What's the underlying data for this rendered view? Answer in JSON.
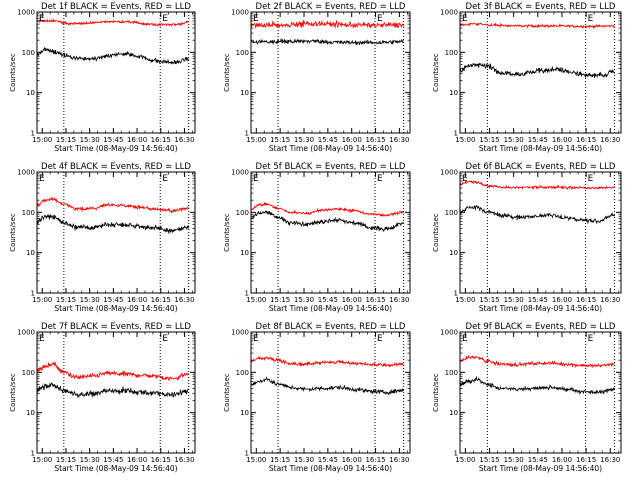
{
  "chart_data": [
    {
      "type": "line",
      "title": "Det 1f BLACK = Events, RED = LLD",
      "xlabel": "Start Time (08-May-09 14:56:40)",
      "ylabel": "Counts/sec",
      "ylog": true,
      "ylim": [
        1,
        1000
      ],
      "yticks": [
        "1",
        "10",
        "100",
        "1000"
      ],
      "xticks": [
        "15:00",
        "15:15",
        "15:30",
        "15:45",
        "16:00",
        "16:15",
        "16:30"
      ],
      "xlim_min": [
        0,
        100
      ],
      "vlines_min": [
        17,
        78,
        96
      ],
      "marker": "E",
      "marker_min": [
        0,
        78
      ],
      "series": [
        {
          "color": "#ff0000",
          "noise": 0.03,
          "x_min": [
            0,
            10,
            20,
            30,
            40,
            50,
            60,
            70,
            80,
            90,
            96
          ],
          "y": [
            600,
            610,
            520,
            520,
            560,
            580,
            560,
            500,
            490,
            500,
            560
          ]
        },
        {
          "color": "#000000",
          "noise": 0.05,
          "x_min": [
            0,
            5,
            10,
            17,
            25,
            35,
            45,
            50,
            55,
            65,
            72,
            80,
            88,
            96
          ],
          "y": [
            90,
            115,
            105,
            85,
            70,
            70,
            80,
            88,
            92,
            80,
            65,
            58,
            56,
            70
          ]
        }
      ]
    },
    {
      "type": "line",
      "title": "Det 2f BLACK = Events, RED = LLD",
      "xlabel": "Start Time (08-May-09 14:56:40)",
      "ylabel": "Counts/sec",
      "ylog": true,
      "ylim": [
        1,
        1000
      ],
      "yticks": [
        "1",
        "10",
        "100",
        "1000"
      ],
      "xticks": [
        "15:00",
        "15:15",
        "15:30",
        "15:45",
        "16:00",
        "16:15",
        "16:30"
      ],
      "xlim_min": [
        0,
        100
      ],
      "vlines_min": [
        17,
        78,
        96
      ],
      "marker": "E",
      "marker_min": [
        0,
        78
      ],
      "series": [
        {
          "color": "#ff0000",
          "noise": 0.07,
          "x_min": [
            0,
            20,
            40,
            50,
            60,
            80,
            96
          ],
          "y": [
            470,
            480,
            520,
            500,
            480,
            470,
            480
          ]
        },
        {
          "color": "#000000",
          "noise": 0.05,
          "x_min": [
            0,
            20,
            40,
            50,
            60,
            80,
            96
          ],
          "y": [
            180,
            185,
            190,
            180,
            175,
            175,
            185
          ]
        }
      ]
    },
    {
      "type": "line",
      "title": "Det 3f BLACK = Events, RED = LLD",
      "xlabel": "Start Time (08-May-09 14:56:40)",
      "ylabel": "Counts/sec",
      "ylog": true,
      "ylim": [
        1,
        1000
      ],
      "yticks": [
        "1",
        "10",
        "100",
        "1000"
      ],
      "xticks": [
        "15:00",
        "15:15",
        "15:30",
        "15:45",
        "16:00",
        "16:15",
        "16:30"
      ],
      "xlim_min": [
        0,
        100
      ],
      "vlines_min": [
        17,
        78,
        96
      ],
      "marker": "E",
      "marker_min": [
        0,
        78
      ],
      "series": [
        {
          "color": "#ff0000",
          "noise": 0.03,
          "x_min": [
            0,
            10,
            20,
            40,
            60,
            80,
            96
          ],
          "y": [
            480,
            510,
            470,
            450,
            450,
            440,
            450
          ]
        },
        {
          "color": "#000000",
          "noise": 0.06,
          "x_min": [
            0,
            5,
            10,
            17,
            25,
            35,
            50,
            60,
            70,
            80,
            90,
            96
          ],
          "y": [
            35,
            45,
            50,
            45,
            32,
            28,
            35,
            38,
            32,
            26,
            28,
            35
          ]
        }
      ]
    },
    {
      "type": "line",
      "title": "Det 4f BLACK = Events, RED = LLD",
      "xlabel": "Start Time (08-May-09 14:56:40)",
      "ylabel": "Counts/sec",
      "ylog": true,
      "ylim": [
        1,
        1000
      ],
      "yticks": [
        "1",
        "10",
        "100",
        "1000"
      ],
      "xticks": [
        "15:00",
        "15:15",
        "15:30",
        "15:45",
        "16:00",
        "16:15",
        "16:30"
      ],
      "xlim_min": [
        0,
        100
      ],
      "vlines_min": [
        17,
        78,
        96
      ],
      "marker": "E",
      "marker_min": [
        0,
        78
      ],
      "series": [
        {
          "color": "#ff0000",
          "noise": 0.04,
          "x_min": [
            0,
            5,
            10,
            17,
            25,
            35,
            45,
            55,
            65,
            75,
            85,
            96
          ],
          "y": [
            150,
            200,
            210,
            160,
            120,
            125,
            150,
            150,
            135,
            120,
            110,
            125
          ]
        },
        {
          "color": "#000000",
          "noise": 0.06,
          "x_min": [
            0,
            5,
            10,
            17,
            25,
            35,
            45,
            55,
            65,
            75,
            85,
            96
          ],
          "y": [
            60,
            75,
            80,
            55,
            42,
            42,
            50,
            50,
            45,
            40,
            35,
            42
          ]
        }
      ]
    },
    {
      "type": "line",
      "title": "Det 5f BLACK = Events, RED = LLD",
      "xlabel": "Start Time (08-May-09 14:56:40)",
      "ylabel": "Counts/sec",
      "ylog": true,
      "ylim": [
        1,
        1000
      ],
      "yticks": [
        "1",
        "10",
        "100",
        "1000"
      ],
      "xticks": [
        "15:00",
        "15:15",
        "15:30",
        "15:45",
        "16:00",
        "16:15",
        "16:30"
      ],
      "xlim_min": [
        0,
        100
      ],
      "vlines_min": [
        17,
        78,
        96
      ],
      "marker": "E",
      "marker_min": [
        0,
        78
      ],
      "series": [
        {
          "color": "#ff0000",
          "noise": 0.03,
          "x_min": [
            0,
            5,
            10,
            17,
            25,
            35,
            45,
            55,
            65,
            75,
            85,
            96
          ],
          "y": [
            120,
            150,
            160,
            125,
            100,
            95,
            115,
            120,
            110,
            90,
            85,
            100
          ]
        },
        {
          "color": "#000000",
          "noise": 0.05,
          "x_min": [
            0,
            5,
            10,
            17,
            25,
            35,
            45,
            55,
            65,
            75,
            85,
            96
          ],
          "y": [
            70,
            95,
            100,
            75,
            55,
            50,
            60,
            65,
            55,
            42,
            38,
            55
          ]
        }
      ]
    },
    {
      "type": "line",
      "title": "Det 6f BLACK = Events, RED = LLD",
      "xlabel": "Start Time (08-May-09 14:56:40)",
      "ylabel": "Counts/sec",
      "ylog": true,
      "ylim": [
        1,
        1000
      ],
      "yticks": [
        "1",
        "10",
        "100",
        "1000"
      ],
      "xticks": [
        "15:00",
        "15:15",
        "15:30",
        "15:45",
        "16:00",
        "16:15",
        "16:30"
      ],
      "xlim_min": [
        0,
        100
      ],
      "vlines_min": [
        17,
        78,
        96
      ],
      "marker": "E",
      "marker_min": [
        0,
        78
      ],
      "series": [
        {
          "color": "#ff0000",
          "noise": 0.03,
          "x_min": [
            0,
            5,
            10,
            17,
            30,
            45,
            60,
            75,
            85,
            96
          ],
          "y": [
            500,
            570,
            560,
            450,
            410,
            420,
            420,
            410,
            400,
            420
          ]
        },
        {
          "color": "#000000",
          "noise": 0.05,
          "x_min": [
            0,
            5,
            10,
            17,
            25,
            35,
            45,
            55,
            65,
            75,
            85,
            96
          ],
          "y": [
            100,
            125,
            130,
            105,
            85,
            75,
            80,
            85,
            75,
            65,
            60,
            85
          ]
        }
      ]
    },
    {
      "type": "line",
      "title": "Det 7f BLACK = Events, RED = LLD",
      "xlabel": "Start Time (08-May-09 14:56:40)",
      "ylabel": "Counts/sec",
      "ylog": true,
      "ylim": [
        1,
        1000
      ],
      "yticks": [
        "1",
        "10",
        "100",
        "1000"
      ],
      "xticks": [
        "15:00",
        "15:15",
        "15:30",
        "15:45",
        "16:00",
        "16:15",
        "16:30"
      ],
      "xlim_min": [
        0,
        100
      ],
      "vlines_min": [
        17,
        78,
        96
      ],
      "marker": "E",
      "marker_min": [
        0,
        78
      ],
      "series": [
        {
          "color": "#ff0000",
          "noise": 0.06,
          "x_min": [
            0,
            5,
            10,
            17,
            25,
            35,
            45,
            55,
            65,
            75,
            85,
            96
          ],
          "y": [
            110,
            140,
            160,
            100,
            75,
            80,
            95,
            90,
            85,
            80,
            70,
            90
          ]
        },
        {
          "color": "#000000",
          "noise": 0.07,
          "x_min": [
            0,
            5,
            10,
            17,
            25,
            35,
            45,
            55,
            65,
            75,
            85,
            96
          ],
          "y": [
            38,
            45,
            50,
            35,
            28,
            30,
            35,
            35,
            32,
            30,
            28,
            35
          ]
        }
      ]
    },
    {
      "type": "line",
      "title": "Det 8f BLACK = Events, RED = LLD",
      "xlabel": "Start Time (08-May-09 14:56:40)",
      "ylabel": "Counts/sec",
      "ylog": true,
      "ylim": [
        1,
        1000
      ],
      "yticks": [
        "1",
        "10",
        "100",
        "1000"
      ],
      "xticks": [
        "15:00",
        "15:15",
        "15:30",
        "15:45",
        "16:00",
        "16:15",
        "16:30"
      ],
      "xlim_min": [
        0,
        100
      ],
      "vlines_min": [
        17,
        78,
        96
      ],
      "marker": "E",
      "marker_min": [
        0,
        78
      ],
      "series": [
        {
          "color": "#ff0000",
          "noise": 0.04,
          "x_min": [
            0,
            5,
            10,
            17,
            25,
            35,
            45,
            55,
            65,
            75,
            85,
            96
          ],
          "y": [
            190,
            220,
            230,
            200,
            165,
            160,
            175,
            180,
            170,
            155,
            150,
            160
          ]
        },
        {
          "color": "#000000",
          "noise": 0.05,
          "x_min": [
            0,
            5,
            10,
            17,
            25,
            35,
            45,
            55,
            65,
            75,
            85,
            96
          ],
          "y": [
            50,
            60,
            65,
            52,
            42,
            38,
            40,
            42,
            38,
            34,
            32,
            36
          ]
        }
      ]
    },
    {
      "type": "line",
      "title": "Det 9f BLACK = Events, RED = LLD",
      "xlabel": "Start Time (08-May-09 14:56:40)",
      "ylabel": "Counts/sec",
      "ylog": true,
      "ylim": [
        1,
        1000
      ],
      "yticks": [
        "1",
        "10",
        "100",
        "1000"
      ],
      "xticks": [
        "15:00",
        "15:15",
        "15:30",
        "15:45",
        "16:00",
        "16:15",
        "16:30"
      ],
      "xlim_min": [
        0,
        100
      ],
      "vlines_min": [
        17,
        78,
        96
      ],
      "marker": "E",
      "marker_min": [
        0,
        78
      ],
      "series": [
        {
          "color": "#ff0000",
          "noise": 0.04,
          "x_min": [
            0,
            5,
            10,
            17,
            25,
            35,
            45,
            55,
            65,
            75,
            85,
            96
          ],
          "y": [
            190,
            230,
            240,
            190,
            160,
            155,
            165,
            170,
            160,
            150,
            145,
            160
          ]
        },
        {
          "color": "#000000",
          "noise": 0.05,
          "x_min": [
            0,
            5,
            10,
            17,
            25,
            35,
            45,
            55,
            65,
            75,
            85,
            96
          ],
          "y": [
            50,
            60,
            65,
            50,
            40,
            38,
            40,
            42,
            38,
            34,
            32,
            38
          ]
        }
      ]
    }
  ]
}
